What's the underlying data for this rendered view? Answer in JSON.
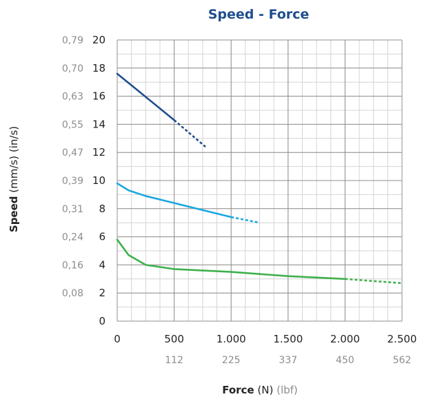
{
  "chart_data": {
    "type": "line",
    "title": "Speed - Force",
    "xlabel": {
      "name": "Force",
      "unit": "(N)",
      "secondary_unit": "(lbf)"
    },
    "ylabel": {
      "name": "Speed",
      "unit": "(mm/s)",
      "secondary_unit": "(in/s)"
    },
    "xlim": [
      0,
      2500
    ],
    "ylim": [
      0,
      20
    ],
    "x_ticks": [
      0,
      500,
      1000,
      1500,
      2000,
      2500
    ],
    "x_tick_labels": [
      "0",
      "500",
      "1.000",
      "1.500",
      "2.000",
      "2.500"
    ],
    "x_secondary_tick_labels": [
      "112",
      "225",
      "337",
      "450",
      "562"
    ],
    "x_secondary_tick_values": [
      500,
      1000,
      1500,
      2000,
      2500
    ],
    "y_ticks": [
      0,
      2,
      4,
      6,
      8,
      10,
      12,
      14,
      16,
      18,
      20
    ],
    "y_tick_labels": [
      "0",
      "2",
      "4",
      "6",
      "8",
      "10",
      "12",
      "14",
      "16",
      "18",
      "20"
    ],
    "y_secondary_tick_labels": [
      "0,08",
      "0,16",
      "0,24",
      "0,31",
      "0,39",
      "0,47",
      "0,55",
      "0,63",
      "0,70",
      "0,79"
    ],
    "y_secondary_tick_values": [
      2,
      4,
      6,
      8,
      10,
      12,
      14,
      16,
      18,
      20
    ],
    "grid": true,
    "series": [
      {
        "color": "#1f4e8c",
        "solid": {
          "x": [
            0,
            500
          ],
          "y": [
            17.6,
            14.3
          ]
        },
        "dashed": {
          "x": [
            500,
            775
          ],
          "y": [
            14.3,
            12.4
          ]
        }
      },
      {
        "color": "#1ba7e0",
        "solid": {
          "x": [
            0,
            100,
            250,
            500,
            750,
            1000
          ],
          "y": [
            9.8,
            9.3,
            8.9,
            8.4,
            7.9,
            7.4
          ]
        },
        "dashed": {
          "x": [
            1000,
            1250
          ],
          "y": [
            7.4,
            7.0
          ]
        }
      },
      {
        "color": "#3fb04b",
        "solid": {
          "x": [
            0,
            100,
            250,
            500,
            1000,
            1500,
            2000
          ],
          "y": [
            5.8,
            4.7,
            4.0,
            3.7,
            3.5,
            3.2,
            3.0
          ]
        },
        "dashed": {
          "x": [
            2000,
            2500
          ],
          "y": [
            3.0,
            2.7
          ]
        }
      }
    ]
  }
}
